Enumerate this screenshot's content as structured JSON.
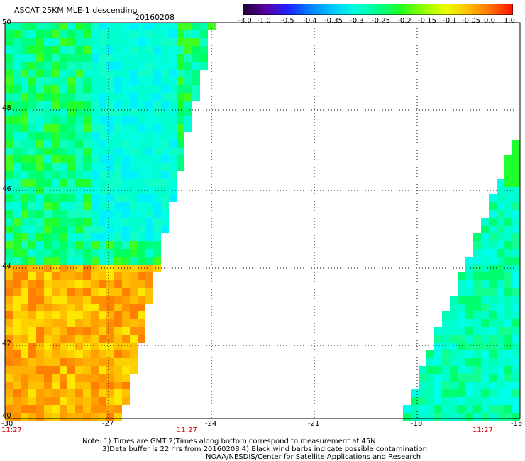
{
  "header": {
    "title": "ASCAT 25KM MLE-1 descending",
    "date": "20160208"
  },
  "colorbar": {
    "labels": [
      "-3.0",
      "-1.0",
      "-0.5",
      "-0.4",
      "-0.35",
      "-0.3",
      "-0.25",
      "-0.2",
      "-0.15",
      "-0.1",
      "-0.05",
      "0.0",
      "1.0"
    ],
    "stops": [
      "#1e0030",
      "#5a00a0",
      "#2020ff",
      "#0080ff",
      "#00c8ff",
      "#00ffe0",
      "#00ff90",
      "#20ff20",
      "#90ff00",
      "#e8ff00",
      "#ffc000",
      "#ff7000",
      "#ff1000"
    ]
  },
  "map": {
    "lon_ticks": [
      "-30",
      "-27",
      "-24",
      "-21",
      "-18",
      "-15"
    ],
    "lat_ticks": [
      "50",
      "48",
      "46",
      "44",
      "42",
      "40"
    ],
    "time_labels": [
      "11:27",
      "11:27",
      "11:27"
    ],
    "lon_range": [
      -30,
      -15
    ],
    "lat_range": [
      40,
      50
    ],
    "gridlines": true
  },
  "notes": {
    "line1": "Note: 1) Times are GMT 2)Times along bottom correspond to measurement at 45N",
    "line2": "3)Data buffer is 22 hrs from 20160208 4) Black wind barbs indicate possible contamination",
    "line3": "NOAA/NESDIS/Center for Satellite Applications and Research"
  }
}
